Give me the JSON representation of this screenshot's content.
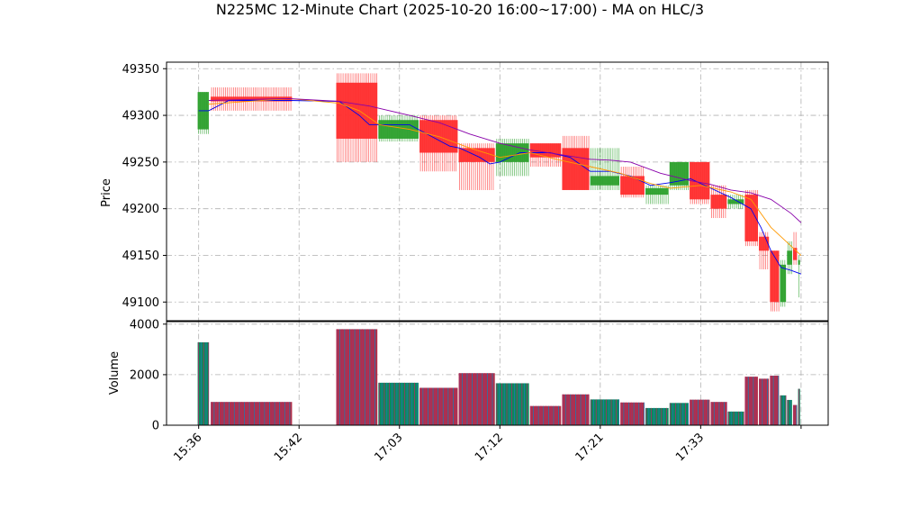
{
  "chart_data": {
    "type": "candlestick",
    "title": "N225MC 12-Minute Chart (2025-10-20 16:00~17:00) - MA on HLC/3",
    "price_panel": {
      "ylabel": "Price",
      "ylim": [
        49080,
        49357
      ],
      "yticks": [
        49100,
        49150,
        49200,
        49250,
        49300,
        49350
      ],
      "grid": true
    },
    "volume_panel": {
      "ylabel": "Volume",
      "ylim": [
        0,
        4100
      ],
      "yticks": [
        0,
        2000,
        4000
      ],
      "grid": true
    },
    "x_ticks": [
      {
        "x": 0,
        "label": "15:36"
      },
      {
        "x": 10,
        "label": "15:42"
      },
      {
        "x": 20,
        "label": "17:03"
      },
      {
        "x": 30,
        "label": "17:12"
      },
      {
        "x": 40,
        "label": "17:21"
      },
      {
        "x": 50,
        "label": "17:33"
      },
      {
        "x": 60,
        "label": ""
      }
    ],
    "xlim": [
      -3.2,
      62.7
    ],
    "candles": [
      {
        "x0": -0.1,
        "x1": 1.0,
        "open": 49285,
        "high": 49325,
        "low": 49280,
        "close": 49325,
        "up": true
      },
      {
        "x0": 1.2,
        "x1": 9.3,
        "open": 49320,
        "high": 49330,
        "low": 49305,
        "close": 49315,
        "up": false
      },
      {
        "x0": 13.7,
        "x1": 17.8,
        "open": 49335,
        "high": 49345,
        "low": 49250,
        "close": 49275,
        "up": false
      },
      {
        "x0": 17.9,
        "x1": 21.9,
        "open": 49275,
        "high": 49300,
        "low": 49272,
        "close": 49295,
        "up": true
      },
      {
        "x0": 22.0,
        "x1": 25.8,
        "open": 49295,
        "high": 49300,
        "low": 49240,
        "close": 49260,
        "up": false
      },
      {
        "x0": 25.9,
        "x1": 29.5,
        "open": 49265,
        "high": 49270,
        "low": 49220,
        "close": 49250,
        "up": false
      },
      {
        "x0": 29.6,
        "x1": 32.9,
        "open": 49250,
        "high": 49275,
        "low": 49235,
        "close": 49270,
        "up": true
      },
      {
        "x0": 33.0,
        "x1": 36.1,
        "open": 49270,
        "high": 49270,
        "low": 49245,
        "close": 49255,
        "up": false
      },
      {
        "x0": 36.2,
        "x1": 38.9,
        "open": 49265,
        "high": 49278,
        "low": 49220,
        "close": 49220,
        "up": false
      },
      {
        "x0": 39.0,
        "x1": 41.9,
        "open": 49225,
        "high": 49265,
        "low": 49220,
        "close": 49235,
        "up": true
      },
      {
        "x0": 42.0,
        "x1": 44.4,
        "open": 49235,
        "high": 49245,
        "low": 49212,
        "close": 49215,
        "up": false
      },
      {
        "x0": 44.5,
        "x1": 46.8,
        "open": 49215,
        "high": 49225,
        "low": 49205,
        "close": 49222,
        "up": true
      },
      {
        "x0": 46.9,
        "x1": 48.8,
        "open": 49225,
        "high": 49250,
        "low": 49220,
        "close": 49250,
        "up": true
      },
      {
        "x0": 48.9,
        "x1": 50.9,
        "open": 49250,
        "high": 49250,
        "low": 49205,
        "close": 49210,
        "up": false
      },
      {
        "x0": 51.0,
        "x1": 52.6,
        "open": 49215,
        "high": 49225,
        "low": 49190,
        "close": 49200,
        "up": false
      },
      {
        "x0": 52.7,
        "x1": 54.3,
        "open": 49205,
        "high": 49215,
        "low": 49200,
        "close": 49210,
        "up": true
      },
      {
        "x0": 54.4,
        "x1": 55.7,
        "open": 49215,
        "high": 49220,
        "low": 49160,
        "close": 49165,
        "up": false
      },
      {
        "x0": 55.8,
        "x1": 56.8,
        "open": 49170,
        "high": 49175,
        "low": 49135,
        "close": 49155,
        "up": false
      },
      {
        "x0": 56.9,
        "x1": 57.8,
        "open": 49155,
        "high": 49155,
        "low": 49090,
        "close": 49100,
        "up": false
      },
      {
        "x0": 57.9,
        "x1": 58.5,
        "open": 49100,
        "high": 49145,
        "low": 49095,
        "close": 49140,
        "up": true
      },
      {
        "x0": 58.6,
        "x1": 59.1,
        "open": 49140,
        "high": 49165,
        "low": 49130,
        "close": 49155,
        "up": true
      },
      {
        "x0": 59.2,
        "x1": 59.6,
        "open": 49158,
        "high": 49175,
        "low": 49140,
        "close": 49145,
        "up": false
      },
      {
        "x0": 59.7,
        "x1": 59.9,
        "open": 49145,
        "high": 49150,
        "low": 49105,
        "close": 49140,
        "up": true
      }
    ],
    "volumes": [
      {
        "x0": -0.1,
        "x1": 1.0,
        "value": 3280,
        "up": true
      },
      {
        "x0": 1.2,
        "x1": 9.3,
        "value": 920,
        "up": false
      },
      {
        "x0": 13.7,
        "x1": 17.8,
        "value": 3800,
        "up": false
      },
      {
        "x0": 17.9,
        "x1": 21.9,
        "value": 1680,
        "up": true
      },
      {
        "x0": 22.0,
        "x1": 25.8,
        "value": 1480,
        "up": false
      },
      {
        "x0": 25.9,
        "x1": 29.5,
        "value": 2060,
        "up": false
      },
      {
        "x0": 29.6,
        "x1": 32.9,
        "value": 1660,
        "up": true
      },
      {
        "x0": 33.0,
        "x1": 36.1,
        "value": 760,
        "up": false
      },
      {
        "x0": 36.2,
        "x1": 38.9,
        "value": 1220,
        "up": false
      },
      {
        "x0": 39.0,
        "x1": 41.9,
        "value": 1020,
        "up": true
      },
      {
        "x0": 42.0,
        "x1": 44.4,
        "value": 900,
        "up": false
      },
      {
        "x0": 44.5,
        "x1": 46.8,
        "value": 680,
        "up": true
      },
      {
        "x0": 46.9,
        "x1": 48.8,
        "value": 880,
        "up": true
      },
      {
        "x0": 48.9,
        "x1": 50.9,
        "value": 1010,
        "up": false
      },
      {
        "x0": 51.0,
        "x1": 52.6,
        "value": 920,
        "up": false
      },
      {
        "x0": 52.7,
        "x1": 54.3,
        "value": 540,
        "up": true
      },
      {
        "x0": 54.4,
        "x1": 55.7,
        "value": 1920,
        "up": false
      },
      {
        "x0": 55.8,
        "x1": 56.8,
        "value": 1840,
        "up": false
      },
      {
        "x0": 56.9,
        "x1": 57.8,
        "value": 1960,
        "up": false
      },
      {
        "x0": 57.9,
        "x1": 58.5,
        "value": 1180,
        "up": true
      },
      {
        "x0": 58.6,
        "x1": 59.1,
        "value": 1000,
        "up": true
      },
      {
        "x0": 59.2,
        "x1": 59.6,
        "value": 800,
        "up": false
      },
      {
        "x0": 59.7,
        "x1": 59.9,
        "value": 1440,
        "up": true
      }
    ],
    "moving_averages": [
      {
        "color": "#0000ee",
        "points": [
          [
            0,
            49305
          ],
          [
            1,
            49305
          ],
          [
            3,
            49316
          ],
          [
            9,
            49316
          ],
          [
            14,
            49315
          ],
          [
            16,
            49300
          ],
          [
            17,
            49290
          ],
          [
            21,
            49290
          ],
          [
            25,
            49267
          ],
          [
            26,
            49265
          ],
          [
            28,
            49255
          ],
          [
            29,
            49248
          ],
          [
            30,
            49250
          ],
          [
            32,
            49260
          ],
          [
            35,
            49260
          ],
          [
            37,
            49255
          ],
          [
            39,
            49240
          ],
          [
            41,
            49240
          ],
          [
            43,
            49235
          ],
          [
            45,
            49225
          ],
          [
            47,
            49228
          ],
          [
            49,
            49232
          ],
          [
            51,
            49222
          ],
          [
            53,
            49212
          ],
          [
            55,
            49200
          ],
          [
            56,
            49180
          ],
          [
            57,
            49155
          ],
          [
            58,
            49137
          ],
          [
            59,
            49134
          ],
          [
            60,
            49130
          ]
        ]
      },
      {
        "color": "#ff9900",
        "points": [
          [
            1,
            49312
          ],
          [
            9,
            49318
          ],
          [
            14,
            49313
          ],
          [
            16,
            49305
          ],
          [
            18,
            49290
          ],
          [
            21,
            49285
          ],
          [
            24,
            49277
          ],
          [
            27,
            49265
          ],
          [
            30,
            49255
          ],
          [
            33,
            49260
          ],
          [
            36,
            49252
          ],
          [
            39,
            49245
          ],
          [
            42,
            49238
          ],
          [
            45,
            49227
          ],
          [
            47,
            49222
          ],
          [
            50,
            49225
          ],
          [
            53,
            49218
          ],
          [
            55,
            49210
          ],
          [
            57,
            49180
          ],
          [
            59,
            49160
          ],
          [
            60,
            49150
          ]
        ]
      },
      {
        "color": "#8800aa",
        "points": [
          [
            1,
            49316
          ],
          [
            9,
            49318
          ],
          [
            14,
            49315
          ],
          [
            17,
            49310
          ],
          [
            21,
            49300
          ],
          [
            24,
            49292
          ],
          [
            27,
            49280
          ],
          [
            30,
            49270
          ],
          [
            33,
            49263
          ],
          [
            36,
            49258
          ],
          [
            39,
            49253
          ],
          [
            41,
            49252
          ],
          [
            43,
            49250
          ],
          [
            46,
            49238
          ],
          [
            49,
            49230
          ],
          [
            51,
            49226
          ],
          [
            53,
            49220
          ],
          [
            55,
            49217
          ],
          [
            57,
            49210
          ],
          [
            59,
            49195
          ],
          [
            60,
            49185
          ]
        ]
      }
    ],
    "colors": {
      "up": "#2ca02c",
      "down": "#ff2d2d",
      "volume_line_blue": "#1f77b4",
      "volume_line_purple": "#a0306a"
    }
  }
}
